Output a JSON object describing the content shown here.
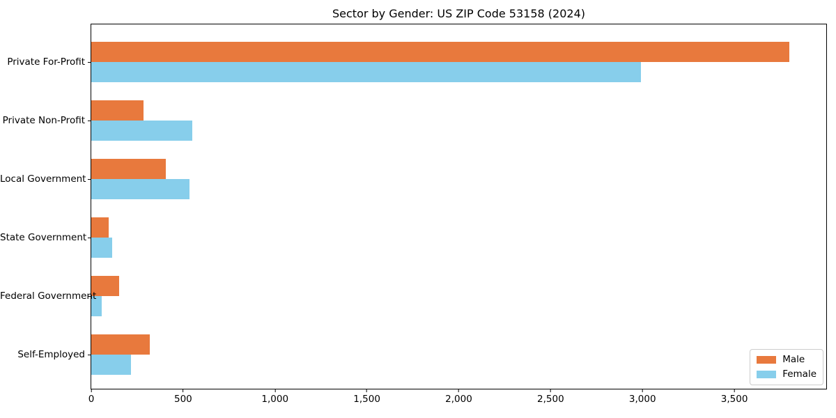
{
  "chart_data": {
    "type": "bar",
    "orientation": "horizontal",
    "title": "Sector by Gender: US ZIP Code 53158 (2024)",
    "categories": [
      "Private For-Profit",
      "Private Non-Profit",
      "Local Government",
      "State Government",
      "Federal Government",
      "Self-Employed"
    ],
    "series": [
      {
        "name": "Male",
        "color": "#e8793d",
        "values": [
          3800,
          285,
          405,
          95,
          150,
          320
        ]
      },
      {
        "name": "Female",
        "color": "#87ceeb",
        "values": [
          2990,
          550,
          535,
          115,
          55,
          215
        ]
      }
    ],
    "xlabel": "",
    "ylabel": "",
    "xlim": [
      0,
      4000
    ],
    "x_ticks": [
      0,
      500,
      1000,
      1500,
      2000,
      2500,
      3000,
      3500
    ],
    "x_tick_labels": [
      "0",
      "500",
      "1,000",
      "1,500",
      "2,000",
      "2,500",
      "3,000",
      "3,500"
    ],
    "grid": false,
    "legend_position": "lower right",
    "background_color": "#ffffff",
    "axis_color": "#000000"
  }
}
